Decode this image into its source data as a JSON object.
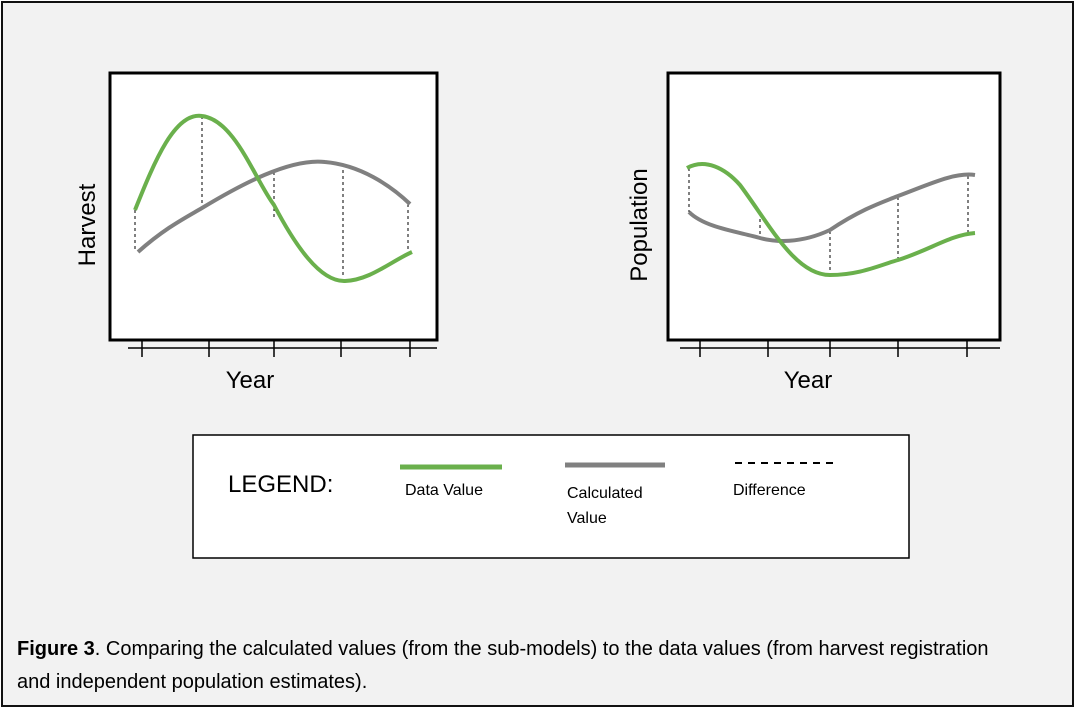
{
  "left_chart": {
    "y_label": "Harvest",
    "x_label": "Year"
  },
  "right_chart": {
    "y_label": "Population",
    "x_label": "Year"
  },
  "legend": {
    "title": "LEGEND:",
    "items": [
      "Data Value",
      "Calculated Value",
      "Difference"
    ]
  },
  "caption": {
    "label": "Figure 3",
    "text": ". Comparing the calculated values (from the sub-models) to the data values (from harvest registration and independent population estimates)."
  }
}
